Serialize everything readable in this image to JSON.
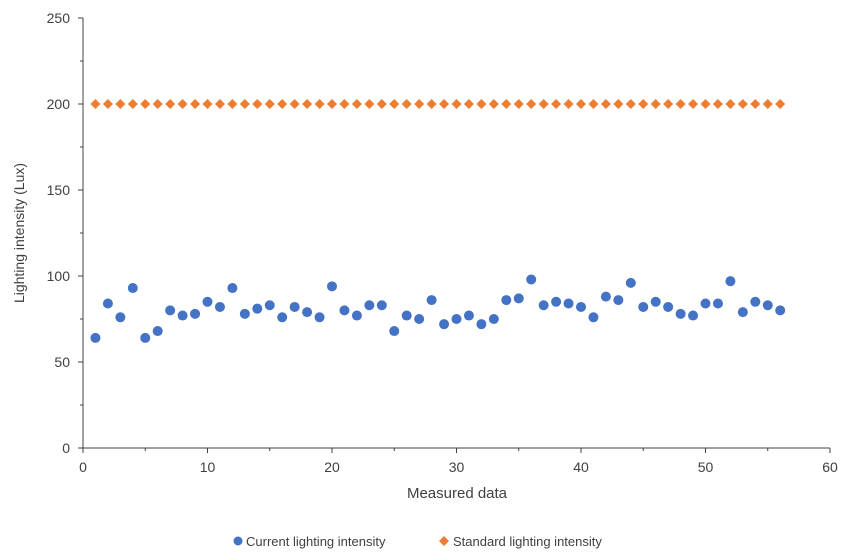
{
  "chart_data": {
    "type": "scatter",
    "title": "",
    "xlabel": "Measured data",
    "ylabel": "Lighting intensity (Lux)",
    "xlim": [
      0,
      60
    ],
    "ylim": [
      0,
      250
    ],
    "x_ticks": [
      0,
      10,
      20,
      30,
      40,
      50,
      60
    ],
    "y_ticks": [
      0,
      50,
      100,
      150,
      200,
      250
    ],
    "grid": false,
    "legend_position": "bottom",
    "series": [
      {
        "name": "Current lighting intensity",
        "color": "#4472C4",
        "marker": "circle",
        "x": [
          1,
          2,
          3,
          4,
          5,
          6,
          7,
          8,
          9,
          10,
          11,
          12,
          13,
          14,
          15,
          16,
          17,
          18,
          19,
          20,
          21,
          22,
          23,
          24,
          25,
          26,
          27,
          28,
          29,
          30,
          31,
          32,
          33,
          34,
          35,
          36,
          37,
          38,
          39,
          40,
          41,
          42,
          43,
          44,
          45,
          46,
          47,
          48,
          49,
          50,
          51,
          52,
          53,
          54,
          55,
          56
        ],
        "y": [
          64,
          84,
          76,
          93,
          64,
          68,
          80,
          77,
          78,
          85,
          82,
          93,
          78,
          81,
          83,
          76,
          82,
          79,
          76,
          94,
          80,
          77,
          83,
          83,
          68,
          77,
          75,
          86,
          72,
          75,
          77,
          72,
          75,
          86,
          87,
          98,
          83,
          85,
          84,
          82,
          76,
          88,
          86,
          96,
          82,
          85,
          82,
          78,
          77,
          84,
          84,
          97,
          79,
          85,
          83,
          80
        ]
      },
      {
        "name": "Standard lighting intensity",
        "color": "#ED7D31",
        "marker": "diamond",
        "x": [
          1,
          2,
          3,
          4,
          5,
          6,
          7,
          8,
          9,
          10,
          11,
          12,
          13,
          14,
          15,
          16,
          17,
          18,
          19,
          20,
          21,
          22,
          23,
          24,
          25,
          26,
          27,
          28,
          29,
          30,
          31,
          32,
          33,
          34,
          35,
          36,
          37,
          38,
          39,
          40,
          41,
          42,
          43,
          44,
          45,
          46,
          47,
          48,
          49,
          50,
          51,
          52,
          53,
          54,
          55,
          56
        ],
        "y": [
          200,
          200,
          200,
          200,
          200,
          200,
          200,
          200,
          200,
          200,
          200,
          200,
          200,
          200,
          200,
          200,
          200,
          200,
          200,
          200,
          200,
          200,
          200,
          200,
          200,
          200,
          200,
          200,
          200,
          200,
          200,
          200,
          200,
          200,
          200,
          200,
          200,
          200,
          200,
          200,
          200,
          200,
          200,
          200,
          200,
          200,
          200,
          200,
          200,
          200,
          200,
          200,
          200,
          200,
          200,
          200
        ]
      }
    ]
  }
}
